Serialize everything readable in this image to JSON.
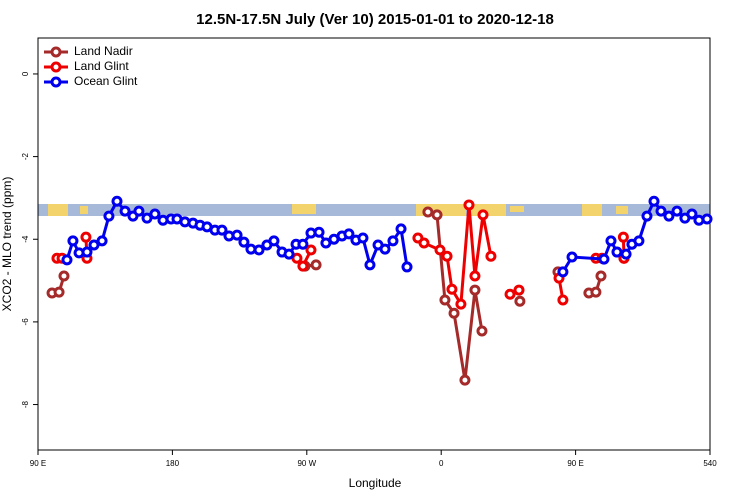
{
  "chart_data": {
    "type": "line",
    "title": "12.5N-17.5N July (Ver 10)   2015-01-01 to 2020-12-18",
    "xlabel": "Longitude",
    "ylabel": "XCO2 - MLO trend (ppm)",
    "xlim": [
      90,
      540
    ],
    "ylim": [
      -9.1,
      0.87
    ],
    "xticks": [
      {
        "value": 90,
        "label": "90 E"
      },
      180,
      {
        "value": 270,
        "label": "90 W"
      },
      {
        "value": 360,
        "label": "0"
      },
      {
        "value": 450,
        "label": "90 E"
      },
      540
    ],
    "yticks": [
      0,
      -2,
      -4,
      -6,
      -8
    ],
    "legend": "top-left",
    "series": [
      {
        "name": "Land Nadir",
        "color": "#a52a2a",
        "x": [
          99.4,
          104.1,
          107.4,
          null,
          268.8,
          276.2,
          null,
          351.1,
          357.2,
          362.5,
          368.6,
          375.9,
          382.6,
          387.3,
          null,
          412.7,
          null,
          438.2,
          null,
          458.9,
          463.6,
          467.0,
          null,
          482.4
        ],
        "values": [
          -5.3,
          -5.28,
          -4.89,
          null,
          -4.65,
          -4.62,
          null,
          -3.34,
          -3.41,
          -5.47,
          -5.79,
          -7.41,
          -5.23,
          -6.22,
          null,
          -5.5,
          null,
          -4.79,
          null,
          -5.3,
          -5.28,
          -4.89,
          null,
          -4.46
        ]
      },
      {
        "name": "Land Glint",
        "color": "#ee0000",
        "x": [
          102.7,
          106.1,
          null,
          122.1,
          122.8,
          null,
          263.4,
          267.4,
          272.8,
          null,
          344.4,
          348.5,
          359.2,
          363.9,
          367.2,
          373.2,
          378.6,
          382.6,
          388.0,
          393.3,
          null,
          406.1,
          412.1,
          null,
          438.9,
          441.5,
          null,
          463.6,
          467.7,
          null,
          482.0,
          482.4
        ],
        "values": [
          -4.46,
          -4.46,
          null,
          -3.95,
          -4.46,
          null,
          -4.46,
          -4.65,
          -4.26,
          null,
          -3.97,
          -4.09,
          -4.26,
          -4.41,
          -5.21,
          -5.57,
          -3.17,
          -4.89,
          -3.41,
          -4.41,
          null,
          -5.33,
          -5.23,
          null,
          -4.94,
          -5.47,
          null,
          -4.46,
          -4.46,
          null,
          -3.95,
          -4.46
        ]
      },
      {
        "name": "Ocean Glint",
        "color": "#0000ee",
        "x": [
          109.4,
          113.4,
          117.5,
          122.8,
          127.5,
          132.9,
          137.5,
          142.9,
          148.3,
          153.6,
          157.6,
          163.0,
          168.3,
          173.7,
          179.1,
          183.1,
          188.4,
          193.8,
          198.5,
          203.2,
          208.5,
          213.2,
          217.9,
          223.3,
          227.9,
          232.6,
          238.0,
          243.3,
          248.0,
          253.4,
          258.1,
          262.8,
          267.4,
          272.8,
          278.2,
          282.8,
          288.2,
          293.6,
          298.2,
          302.9,
          307.6,
          312.3,
          317.7,
          322.4,
          327.7,
          333.1,
          337.1,
          null,
          441.5,
          447.6,
          469.0,
          473.7,
          477.7,
          483.8,
          487.7,
          492.4,
          497.8,
          502.5,
          507.2,
          512.5,
          517.9,
          523.2,
          527.9,
          532.6,
          538.0
        ],
        "values": [
          -4.5,
          -4.04,
          -4.33,
          -4.31,
          -4.14,
          -4.04,
          -3.44,
          -3.08,
          -3.32,
          -3.44,
          -3.32,
          -3.49,
          -3.39,
          -3.54,
          -3.51,
          -3.51,
          -3.58,
          -3.61,
          -3.66,
          -3.7,
          -3.78,
          -3.78,
          -3.92,
          -3.9,
          -4.07,
          -4.24,
          -4.26,
          -4.14,
          -4.04,
          -4.31,
          -4.36,
          -4.12,
          -4.12,
          -3.85,
          -3.83,
          -4.09,
          -4.0,
          -3.92,
          -3.87,
          -4.02,
          -3.97,
          -4.62,
          -4.14,
          -4.24,
          -4.04,
          -3.75,
          -4.67,
          null,
          -4.79,
          -4.43,
          -4.48,
          -4.04,
          -4.31,
          -4.36,
          -4.12,
          -4.04,
          -3.44,
          -3.08,
          -3.32,
          -3.44,
          -3.32,
          -3.49,
          -3.39,
          -3.54,
          -3.51
        ]
      }
    ]
  }
}
